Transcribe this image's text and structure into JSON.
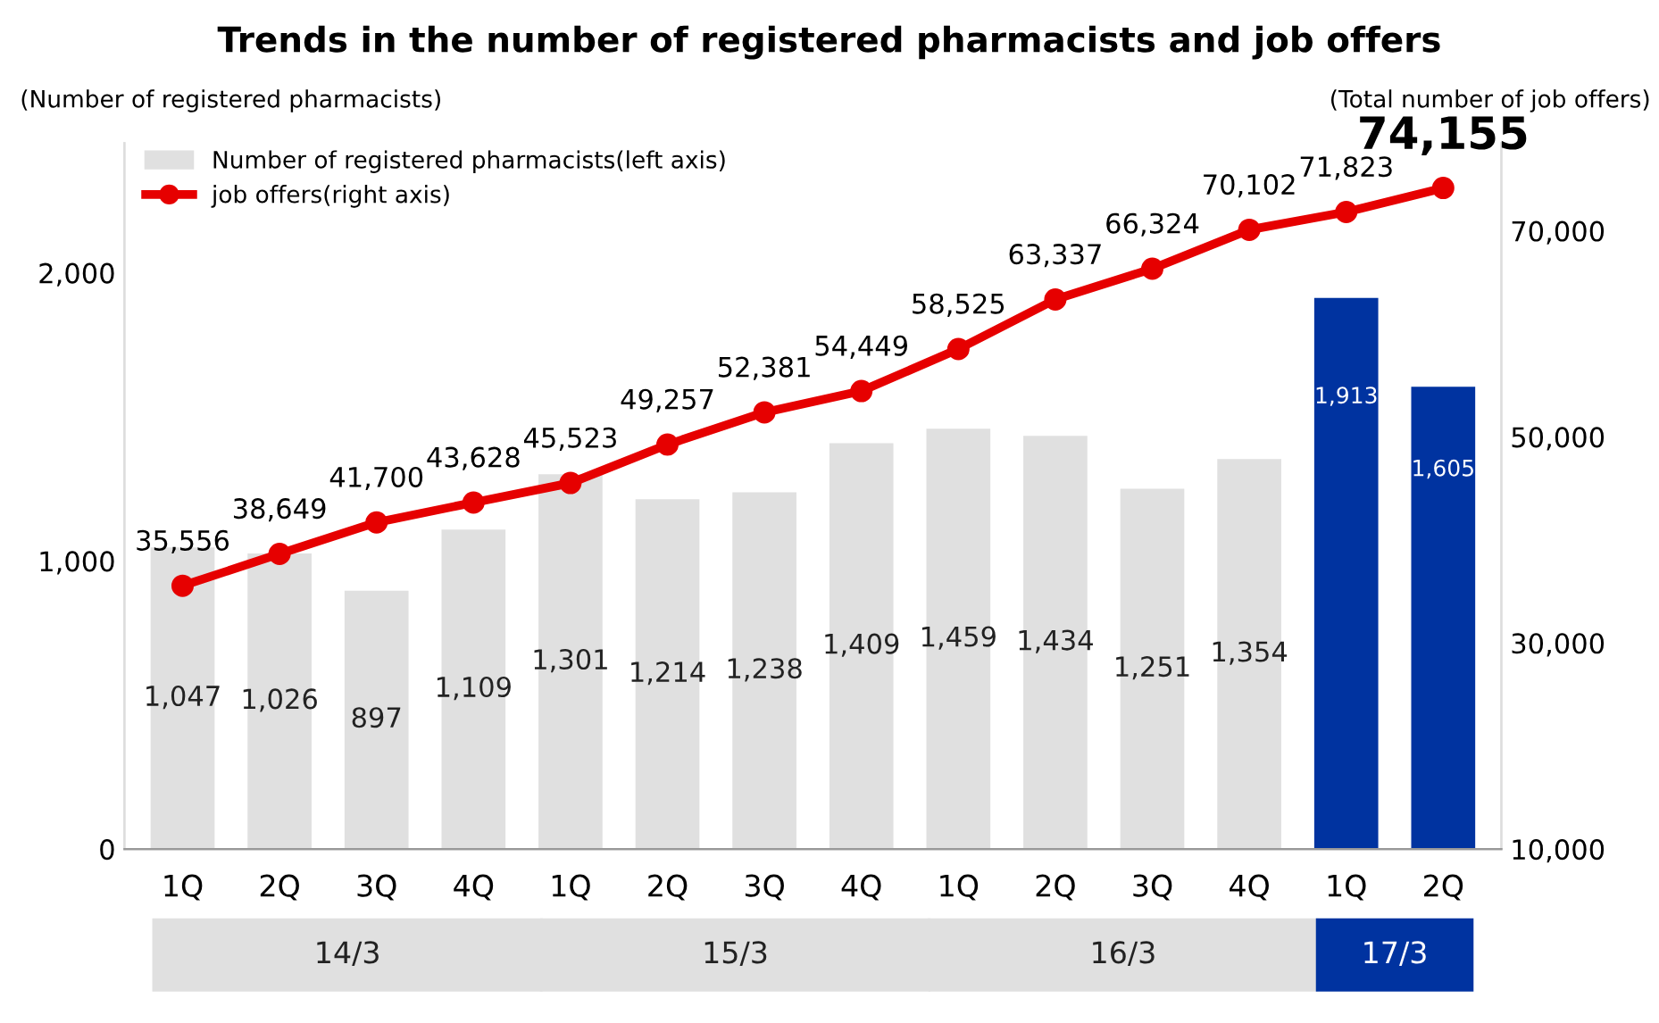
{
  "chart_data": {
    "type": "bar",
    "title": "Trends in the number of registered pharmacists and job offers",
    "ylabel": "(Number of registered pharmacists)",
    "y2label": "(Total number of job offers)",
    "categories": [
      "1Q",
      "2Q",
      "3Q",
      "4Q",
      "1Q",
      "2Q",
      "3Q",
      "4Q",
      "1Q",
      "2Q",
      "3Q",
      "4Q",
      "1Q",
      "2Q"
    ],
    "series": [
      {
        "name": "Number of registered pharmacists(left axis)",
        "value_labels": [
          "1,047",
          "1,026",
          "897",
          "1,109",
          "1,301",
          "1,214",
          "1,238",
          "1,409",
          "1,459",
          "1,434",
          "1,251",
          "1,354",
          "1,913",
          "1,605"
        ],
        "color": "#e0e0e0",
        "colors": [
          "#e0e0e0",
          "#e0e0e0",
          "#e0e0e0",
          "#e0e0e0",
          "#e0e0e0",
          "#e0e0e0",
          "#e0e0e0",
          "#e0e0e0",
          "#e0e0e0",
          "#e0e0e0",
          "#e0e0e0",
          "#e0e0e0",
          "#0033a0",
          "#0033a0"
        ],
        "values": [
          1047,
          1026,
          897,
          1109,
          1301,
          1214,
          1238,
          1409,
          1459,
          1434,
          1251,
          1354,
          1913,
          1605
        ]
      },
      {
        "name": "job offers(right axis)",
        "type": "line",
        "axis": "y2",
        "color": "#e60000",
        "marker": "circle",
        "value_labels": [
          "35,556",
          "38,649",
          "41,700",
          "43,628",
          "45,523",
          "49,257",
          "52,381",
          "54,449",
          "58,525",
          "63,337",
          "66,324",
          "70,102",
          "71,823",
          "74,155"
        ],
        "values": [
          35556,
          38649,
          41700,
          43628,
          45523,
          49257,
          52381,
          54449,
          58525,
          63337,
          66324,
          70102,
          71823,
          74155
        ]
      }
    ],
    "annotations": [
      "14/3",
      "15/3",
      "16/3",
      "17/3"
    ],
    "ylim": [
      0,
      2450
    ],
    "yticks": [
      0,
      {
        "value": 1000,
        "label": "1,000"
      },
      {
        "value": 2000,
        "label": "2,000"
      }
    ],
    "y2lim": [
      10000,
      78500
    ],
    "y2ticks": [
      {
        "value": 10000,
        "label": "10,000"
      },
      {
        "value": 30000,
        "label": "30,000"
      },
      {
        "value": 50000,
        "label": "50,000"
      },
      {
        "value": 70000,
        "label": "70,000"
      }
    ],
    "legend": "top left",
    "grid": false
  }
}
